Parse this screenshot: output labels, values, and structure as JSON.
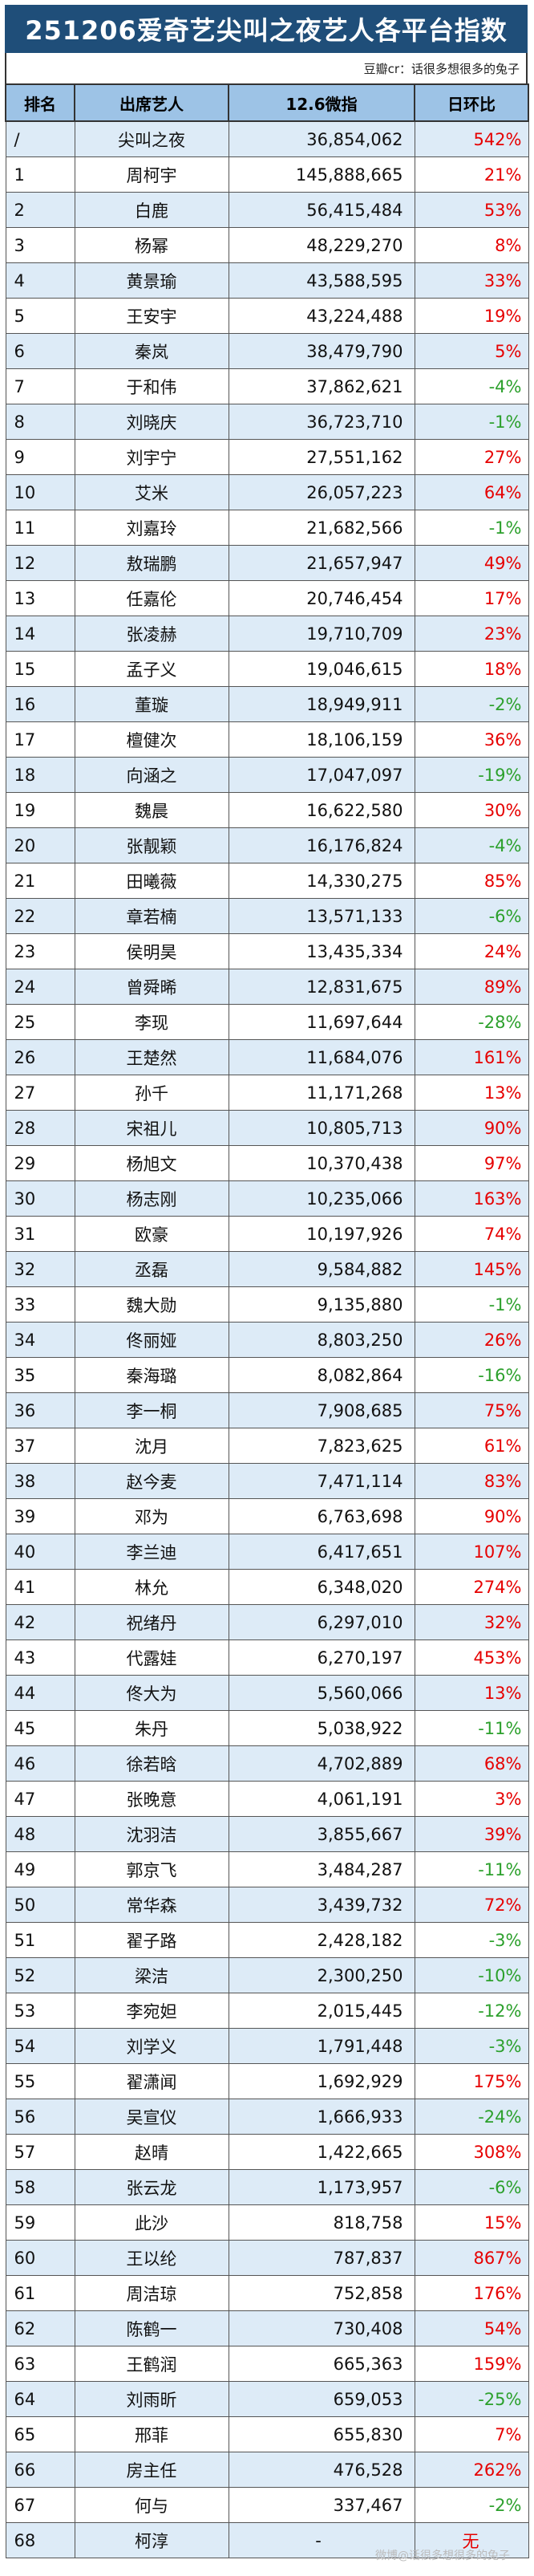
{
  "title": "251206爱奇艺尖叫之夜艺人各平台指数",
  "credit": "豆瓣cr：话很多想很多的兔子",
  "headers": [
    "排名",
    "出席艺人",
    "12.6微指",
    "日环比"
  ],
  "rows": [
    {
      "rank": "/",
      "artist": "尖叫之夜",
      "value": "36,854,062",
      "change": "542%",
      "dir": "up"
    },
    {
      "rank": "1",
      "artist": "周柯宇",
      "value": "145,888,665",
      "change": "21%",
      "dir": "up"
    },
    {
      "rank": "2",
      "artist": "白鹿",
      "value": "56,415,484",
      "change": "53%",
      "dir": "up"
    },
    {
      "rank": "3",
      "artist": "杨幂",
      "value": "48,229,270",
      "change": "8%",
      "dir": "up"
    },
    {
      "rank": "4",
      "artist": "黄景瑜",
      "value": "43,588,595",
      "change": "33%",
      "dir": "up"
    },
    {
      "rank": "5",
      "artist": "王安宇",
      "value": "43,224,488",
      "change": "19%",
      "dir": "up"
    },
    {
      "rank": "6",
      "artist": "秦岚",
      "value": "38,479,790",
      "change": "5%",
      "dir": "up"
    },
    {
      "rank": "7",
      "artist": "于和伟",
      "value": "37,862,621",
      "change": "-4%",
      "dir": "down"
    },
    {
      "rank": "8",
      "artist": "刘晓庆",
      "value": "36,723,710",
      "change": "-1%",
      "dir": "down"
    },
    {
      "rank": "9",
      "artist": "刘宇宁",
      "value": "27,551,162",
      "change": "27%",
      "dir": "up"
    },
    {
      "rank": "10",
      "artist": "艾米",
      "value": "26,057,223",
      "change": "64%",
      "dir": "up"
    },
    {
      "rank": "11",
      "artist": "刘嘉玲",
      "value": "21,682,566",
      "change": "-1%",
      "dir": "down"
    },
    {
      "rank": "12",
      "artist": "敖瑞鹏",
      "value": "21,657,947",
      "change": "49%",
      "dir": "up"
    },
    {
      "rank": "13",
      "artist": "任嘉伦",
      "value": "20,746,454",
      "change": "17%",
      "dir": "up"
    },
    {
      "rank": "14",
      "artist": "张凌赫",
      "value": "19,710,709",
      "change": "23%",
      "dir": "up"
    },
    {
      "rank": "15",
      "artist": "孟子义",
      "value": "19,046,615",
      "change": "18%",
      "dir": "up"
    },
    {
      "rank": "16",
      "artist": "董璇",
      "value": "18,949,911",
      "change": "-2%",
      "dir": "down"
    },
    {
      "rank": "17",
      "artist": "檀健次",
      "value": "18,106,159",
      "change": "36%",
      "dir": "up"
    },
    {
      "rank": "18",
      "artist": "向涵之",
      "value": "17,047,097",
      "change": "-19%",
      "dir": "down"
    },
    {
      "rank": "19",
      "artist": "魏晨",
      "value": "16,622,580",
      "change": "30%",
      "dir": "up"
    },
    {
      "rank": "20",
      "artist": "张靓颖",
      "value": "16,176,824",
      "change": "-4%",
      "dir": "down"
    },
    {
      "rank": "21",
      "artist": "田曦薇",
      "value": "14,330,275",
      "change": "85%",
      "dir": "up"
    },
    {
      "rank": "22",
      "artist": "章若楠",
      "value": "13,571,133",
      "change": "-6%",
      "dir": "down"
    },
    {
      "rank": "23",
      "artist": "侯明昊",
      "value": "13,435,334",
      "change": "24%",
      "dir": "up"
    },
    {
      "rank": "24",
      "artist": "曾舜晞",
      "value": "12,831,675",
      "change": "89%",
      "dir": "up"
    },
    {
      "rank": "25",
      "artist": "李现",
      "value": "11,697,644",
      "change": "-28%",
      "dir": "down"
    },
    {
      "rank": "26",
      "artist": "王楚然",
      "value": "11,684,076",
      "change": "161%",
      "dir": "up"
    },
    {
      "rank": "27",
      "artist": "孙千",
      "value": "11,171,268",
      "change": "13%",
      "dir": "up"
    },
    {
      "rank": "28",
      "artist": "宋祖儿",
      "value": "10,805,713",
      "change": "90%",
      "dir": "up"
    },
    {
      "rank": "29",
      "artist": "杨旭文",
      "value": "10,370,438",
      "change": "97%",
      "dir": "up"
    },
    {
      "rank": "30",
      "artist": "杨志刚",
      "value": "10,235,066",
      "change": "163%",
      "dir": "up"
    },
    {
      "rank": "31",
      "artist": "欧豪",
      "value": "10,197,926",
      "change": "74%",
      "dir": "up"
    },
    {
      "rank": "32",
      "artist": "丞磊",
      "value": "9,584,882",
      "change": "145%",
      "dir": "up"
    },
    {
      "rank": "33",
      "artist": "魏大勋",
      "value": "9,135,880",
      "change": "-1%",
      "dir": "down"
    },
    {
      "rank": "34",
      "artist": "佟丽娅",
      "value": "8,803,250",
      "change": "26%",
      "dir": "up"
    },
    {
      "rank": "35",
      "artist": "秦海璐",
      "value": "8,082,864",
      "change": "-16%",
      "dir": "down"
    },
    {
      "rank": "36",
      "artist": "李一桐",
      "value": "7,908,685",
      "change": "75%",
      "dir": "up"
    },
    {
      "rank": "37",
      "artist": "沈月",
      "value": "7,823,625",
      "change": "61%",
      "dir": "up"
    },
    {
      "rank": "38",
      "artist": "赵今麦",
      "value": "7,471,114",
      "change": "83%",
      "dir": "up"
    },
    {
      "rank": "39",
      "artist": "邓为",
      "value": "6,763,698",
      "change": "90%",
      "dir": "up"
    },
    {
      "rank": "40",
      "artist": "李兰迪",
      "value": "6,417,651",
      "change": "107%",
      "dir": "up"
    },
    {
      "rank": "41",
      "artist": "林允",
      "value": "6,348,020",
      "change": "274%",
      "dir": "up"
    },
    {
      "rank": "42",
      "artist": "祝绪丹",
      "value": "6,297,010",
      "change": "32%",
      "dir": "up"
    },
    {
      "rank": "43",
      "artist": "代露娃",
      "value": "6,270,197",
      "change": "453%",
      "dir": "up"
    },
    {
      "rank": "44",
      "artist": "佟大为",
      "value": "5,560,066",
      "change": "13%",
      "dir": "up"
    },
    {
      "rank": "45",
      "artist": "朱丹",
      "value": "5,038,922",
      "change": "-11%",
      "dir": "down"
    },
    {
      "rank": "46",
      "artist": "徐若晗",
      "value": "4,702,889",
      "change": "68%",
      "dir": "up"
    },
    {
      "rank": "47",
      "artist": "张晚意",
      "value": "4,061,191",
      "change": "3%",
      "dir": "up"
    },
    {
      "rank": "48",
      "artist": "沈羽洁",
      "value": "3,855,667",
      "change": "39%",
      "dir": "up"
    },
    {
      "rank": "49",
      "artist": "郭京飞",
      "value": "3,484,287",
      "change": "-11%",
      "dir": "down"
    },
    {
      "rank": "50",
      "artist": "常华森",
      "value": "3,439,732",
      "change": "72%",
      "dir": "up"
    },
    {
      "rank": "51",
      "artist": "翟子路",
      "value": "2,428,182",
      "change": "-3%",
      "dir": "down"
    },
    {
      "rank": "52",
      "artist": "梁洁",
      "value": "2,300,250",
      "change": "-10%",
      "dir": "down"
    },
    {
      "rank": "53",
      "artist": "李宛妲",
      "value": "2,015,445",
      "change": "-12%",
      "dir": "down"
    },
    {
      "rank": "54",
      "artist": "刘学义",
      "value": "1,791,448",
      "change": "-3%",
      "dir": "down"
    },
    {
      "rank": "55",
      "artist": "翟潇闻",
      "value": "1,692,929",
      "change": "175%",
      "dir": "up"
    },
    {
      "rank": "56",
      "artist": "吴宣仪",
      "value": "1,666,933",
      "change": "-24%",
      "dir": "down"
    },
    {
      "rank": "57",
      "artist": "赵晴",
      "value": "1,422,665",
      "change": "308%",
      "dir": "up"
    },
    {
      "rank": "58",
      "artist": "张云龙",
      "value": "1,173,957",
      "change": "-6%",
      "dir": "down"
    },
    {
      "rank": "59",
      "artist": "此沙",
      "value": "818,758",
      "change": "15%",
      "dir": "up"
    },
    {
      "rank": "60",
      "artist": "王以纶",
      "value": "787,837",
      "change": "867%",
      "dir": "up"
    },
    {
      "rank": "61",
      "artist": "周洁琼",
      "value": "752,858",
      "change": "176%",
      "dir": "up"
    },
    {
      "rank": "62",
      "artist": "陈鹤一",
      "value": "730,408",
      "change": "54%",
      "dir": "up"
    },
    {
      "rank": "63",
      "artist": "王鹤润",
      "value": "665,363",
      "change": "159%",
      "dir": "up"
    },
    {
      "rank": "64",
      "artist": "刘雨昕",
      "value": "659,053",
      "change": "-25%",
      "dir": "down"
    },
    {
      "rank": "65",
      "artist": "邢菲",
      "value": "655,830",
      "change": "7%",
      "dir": "up"
    },
    {
      "rank": "66",
      "artist": "房主任",
      "value": "476,528",
      "change": "262%",
      "dir": "up"
    },
    {
      "rank": "67",
      "artist": "何与",
      "value": "337,467",
      "change": "-2%",
      "dir": "down"
    },
    {
      "rank": "68",
      "artist": "柯淳",
      "value": "-",
      "change": "无",
      "dir": "neutral"
    }
  ],
  "watermark": "微博@话很多想很多的兔子",
  "colors": {
    "header_bg": "#1f4e79",
    "table_head_bg": "#9dc3e6",
    "stripe_bg": "#ddebf7",
    "up": "#e60000",
    "down": "#2ca02c"
  }
}
